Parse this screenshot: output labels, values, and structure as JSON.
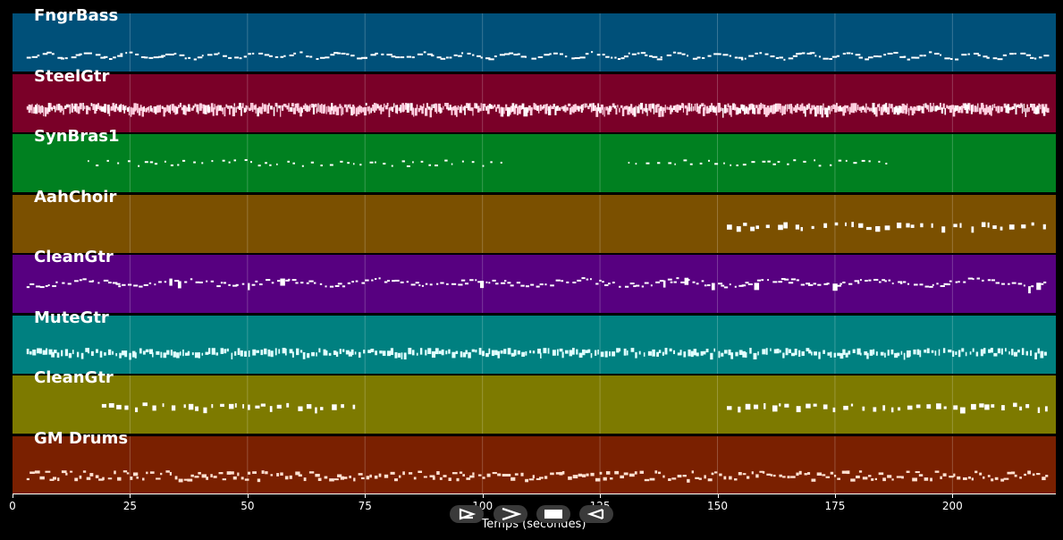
{
  "tracks": [
    {
      "name": "FngrBass",
      "color": "#005079",
      "segments": [
        [
          3,
          220
        ]
      ],
      "style": "bass"
    },
    {
      "name": "SteelGtr",
      "color": "#7a0028",
      "segments": [
        [
          3,
          220
        ]
      ],
      "style": "dense"
    },
    {
      "name": "SynBras1",
      "color": "#008020",
      "segments": [
        [
          16,
          104
        ],
        [
          131,
          188
        ]
      ],
      "style": "sparse"
    },
    {
      "name": "AahChoir",
      "color": "#7b5000",
      "segments": [
        [
          152,
          220
        ]
      ],
      "style": "chords"
    },
    {
      "name": "CleanGtr",
      "color": "#570080",
      "segments": [
        [
          3,
          220
        ]
      ],
      "style": "melody"
    },
    {
      "name": "MuteGtr",
      "color": "#008080",
      "segments": [
        [
          3,
          220
        ]
      ],
      "style": "dense-light"
    },
    {
      "name": "CleanGtr",
      "color": "#7d7a00",
      "segments": [
        [
          19,
          74
        ],
        [
          152,
          220
        ]
      ],
      "style": "chords"
    },
    {
      "name": "GM Drums",
      "color": "#7a2000",
      "segments": [
        [
          3,
          220
        ]
      ],
      "style": "drums"
    }
  ],
  "x_axis": {
    "range": [
      0,
      222
    ],
    "ticks": [
      "0",
      "25",
      "50",
      "75",
      "100",
      "125",
      "150",
      "175",
      "200"
    ],
    "title": "Temps (secondes)"
  },
  "controls": [
    {
      "name": "play-icon"
    },
    {
      "name": "fast-forward-icon"
    },
    {
      "name": "stop-icon"
    },
    {
      "name": "rewind-icon"
    }
  ]
}
